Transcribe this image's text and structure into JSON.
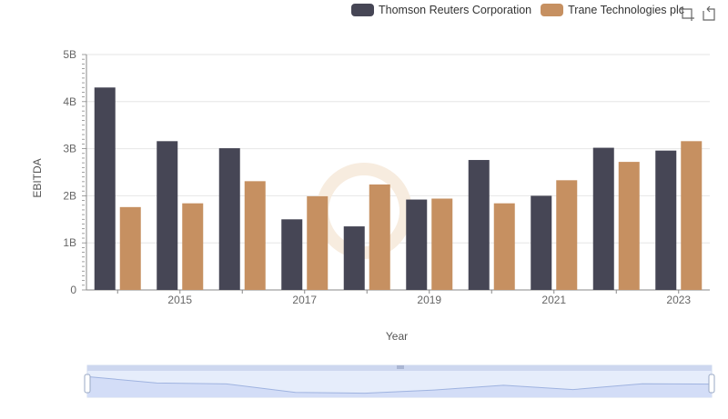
{
  "legend": {
    "items": [
      {
        "label": "Thomson Reuters Corporation",
        "color": "#464655"
      },
      {
        "label": "Trane Technologies plc",
        "color": "#c69061"
      }
    ]
  },
  "toolbox": {
    "icons": [
      "zoom-icon",
      "restore-icon"
    ]
  },
  "chart_data": {
    "type": "bar",
    "title": "",
    "xlabel": "Year",
    "ylabel": "EBITDA",
    "ylim": [
      0,
      5000000000
    ],
    "yticks": [
      "0",
      "1B",
      "2B",
      "3B",
      "4B",
      "5B"
    ],
    "categories": [
      "2014",
      "2015",
      "2016",
      "2017",
      "2018",
      "2019",
      "2020",
      "2021",
      "2022",
      "2023"
    ],
    "xtick_labels": [
      "2015",
      "2017",
      "2019",
      "2021",
      "2023"
    ],
    "series": [
      {
        "name": "Thomson Reuters Corporation",
        "color": "#464655",
        "values": [
          4300000000,
          3160000000,
          3010000000,
          1500000000,
          1350000000,
          1920000000,
          2760000000,
          2000000000,
          3020000000,
          2960000000
        ]
      },
      {
        "name": "Trane Technologies plc",
        "color": "#c69061",
        "values": [
          1760000000,
          1840000000,
          2310000000,
          1990000000,
          2240000000,
          1940000000,
          1840000000,
          2330000000,
          2720000000,
          3160000000
        ]
      }
    ],
    "grid": true,
    "legend_position": "top-right"
  }
}
